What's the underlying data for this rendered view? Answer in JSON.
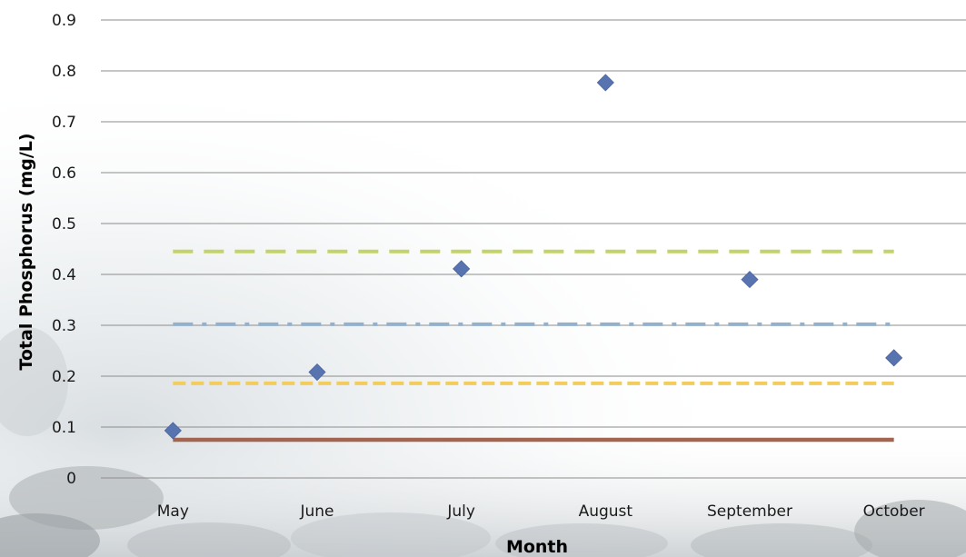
{
  "chart_data": {
    "type": "scatter",
    "title": "",
    "xlabel": "Month",
    "ylabel": "Total Phosphorus (mg/L)",
    "categories": [
      "May",
      "June",
      "July",
      "August",
      "September",
      "October"
    ],
    "ylim": [
      0,
      0.9
    ],
    "yticks": [
      "0",
      "0.1",
      "0.2",
      "0.3",
      "0.4",
      "0.5",
      "0.6",
      "0.7",
      "0.8",
      "0.9"
    ],
    "grid": true,
    "legend": "none",
    "series": [
      {
        "kind": "points",
        "marker": "diamond",
        "color": "#5874b0",
        "values": [
          0.093,
          0.208,
          0.411,
          0.777,
          0.39,
          0.236
        ]
      },
      {
        "kind": "reference-line",
        "style": "dashed",
        "color": "#c3d36a",
        "value": 0.445
      },
      {
        "kind": "reference-line",
        "style": "dash-dot",
        "color": "#93b0cc",
        "value": 0.302
      },
      {
        "kind": "reference-line",
        "style": "short-dash",
        "color": "#f2cc5c",
        "value": 0.186
      },
      {
        "kind": "reference-line",
        "style": "solid",
        "color": "#a3654f",
        "value": 0.075
      }
    ],
    "colors": {
      "gridline": "#8c8c8c",
      "background_stone": "#b9bdbf",
      "background_water": "#e3e7ea"
    }
  }
}
